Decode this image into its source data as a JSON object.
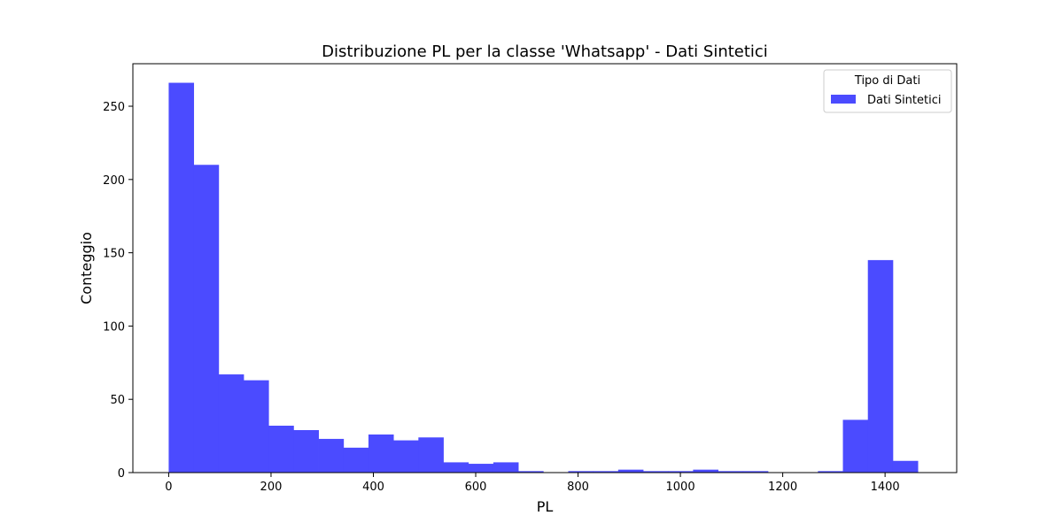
{
  "chart_data": {
    "type": "bar",
    "title": "Distribuzione PL per la classe 'Whatsapp' - Dati Sintetici",
    "xlabel": "PL",
    "ylabel": "Conteggio",
    "xlim": [
      -70,
      1540
    ],
    "ylim": [
      0,
      279
    ],
    "x_ticks": [
      0,
      200,
      400,
      600,
      800,
      1000,
      1200,
      1400
    ],
    "y_ticks": [
      0,
      50,
      100,
      150,
      200,
      250
    ],
    "bin_edges": [
      0,
      48.8,
      97.6,
      146.4,
      195.2,
      244.0,
      292.8,
      341.6,
      390.4,
      439.2,
      488.0,
      536.8,
      585.6,
      634.4,
      683.2,
      732.0,
      780.8,
      829.6,
      878.4,
      927.2,
      976.0,
      1024.8,
      1073.6,
      1122.4,
      1171.2,
      1220.0,
      1268.8,
      1317.6,
      1366.4,
      1415.2,
      1464.0
    ],
    "values": [
      266,
      210,
      67,
      63,
      32,
      29,
      23,
      17,
      26,
      22,
      24,
      7,
      6,
      7,
      1,
      0,
      1,
      1,
      2,
      1,
      1,
      2,
      1,
      1,
      0,
      0,
      1,
      36,
      145,
      8
    ],
    "series": [
      {
        "name": "Dati Sintetici",
        "color": "#4b4bff"
      }
    ],
    "legend": {
      "title": "Tipo di Dati",
      "placement": "top-right"
    },
    "grid": false
  }
}
